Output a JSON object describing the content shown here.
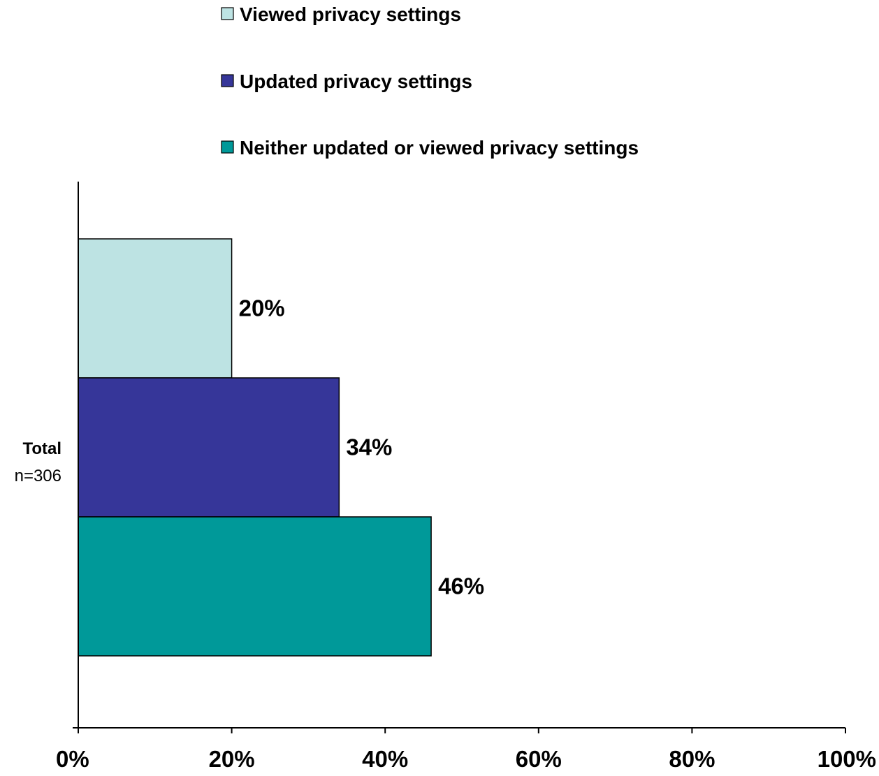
{
  "chart_data": {
    "type": "bar",
    "orientation": "horizontal",
    "categories": [
      "Total"
    ],
    "category_sublabels": [
      "n=306"
    ],
    "series": [
      {
        "name": "Viewed privacy settings",
        "values": [
          20
        ],
        "color": "#bde3e3",
        "label": "20%"
      },
      {
        "name": "Updated privacy settings",
        "values": [
          34
        ],
        "color": "#363699",
        "label": "34%"
      },
      {
        "name": "Neither updated or viewed privacy settings",
        "values": [
          46
        ],
        "color": "#009999",
        "label": "46%"
      }
    ],
    "xlim": [
      0,
      100
    ],
    "xticks": [
      0,
      20,
      40,
      60,
      80,
      100
    ],
    "xtick_labels": [
      "0%",
      "20%",
      "40%",
      "60%",
      "80%",
      "100%"
    ],
    "legend_position": "top",
    "grid": false
  }
}
